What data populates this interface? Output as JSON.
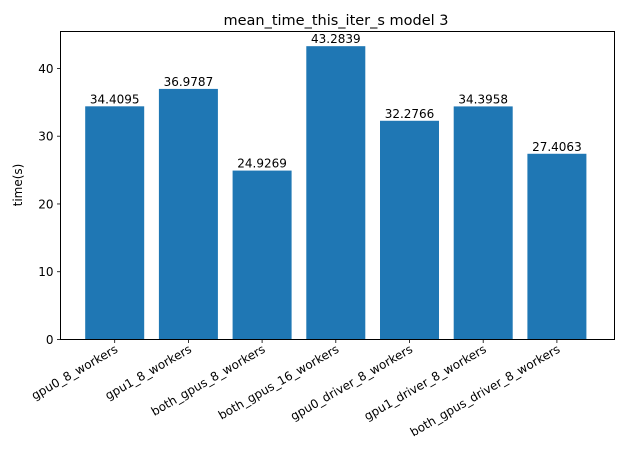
{
  "chart_data": {
    "type": "bar",
    "title": "mean_time_this_iter_s model 3",
    "xlabel": "",
    "ylabel": "time(s)",
    "categories": [
      "gpu0_8_workers",
      "gpu1_8_workers",
      "both_gpus_8_workers",
      "both_gpus_16_workers",
      "gpu0_driver_8_workers",
      "gpu1_driver_8_workers",
      "both_gpus_driver_8_workers"
    ],
    "values": [
      34.4095,
      36.9787,
      24.9269,
      43.2839,
      32.2766,
      34.3958,
      27.4063
    ],
    "value_labels": [
      "34.4095",
      "36.9787",
      "24.9269",
      "43.2839",
      "32.2766",
      "34.3958",
      "27.4063"
    ],
    "ylim": [
      0,
      45.45
    ],
    "yticks": [
      0,
      10,
      20,
      30,
      40
    ],
    "grid": false,
    "bar_color": "#1f77b4"
  }
}
